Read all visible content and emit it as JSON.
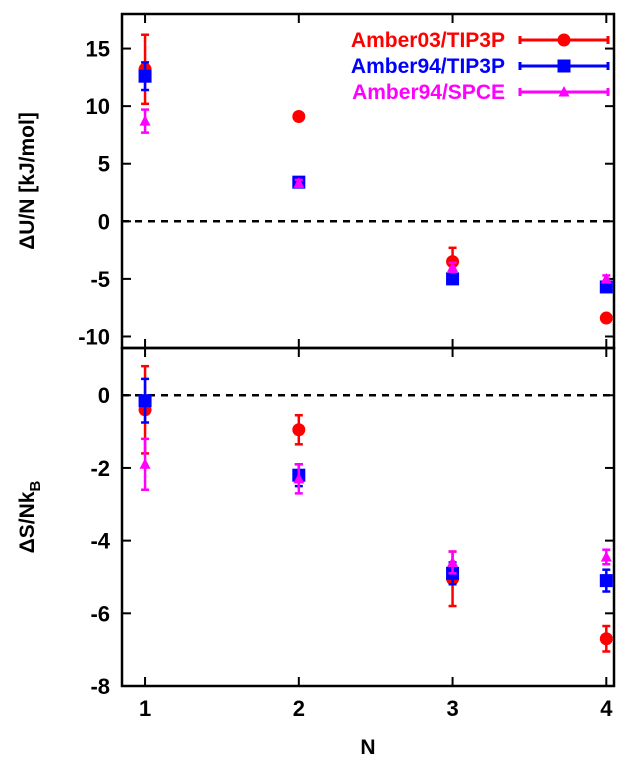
{
  "colors": {
    "amber03_tip3p": "#ff0000",
    "amber94_tip3p": "#0000ff",
    "amber94_spce": "#ff00ff",
    "axis": "#000000"
  },
  "chart_data": [
    {
      "type": "scatter",
      "panel": "top",
      "xlabel": "",
      "ylabel": "ΔU/N [kJ/mol]",
      "xlim": [
        0.85,
        4.05
      ],
      "ylim": [
        -11,
        18
      ],
      "xticks": [
        1,
        2,
        3,
        4
      ],
      "yticks": [
        -10,
        -5,
        0,
        5,
        10,
        15
      ],
      "ytick_labels": [
        "-10",
        "-5",
        "0",
        "5",
        "10",
        "15"
      ],
      "reference_line": {
        "y": 0,
        "style": "dashed"
      },
      "legend": {
        "position": "top-right"
      },
      "series": [
        {
          "name": "Amber03/TIP3P",
          "marker": "circle",
          "color": "#ff0000",
          "x": [
            1,
            2,
            3,
            4
          ],
          "y": [
            13.2,
            9.1,
            -3.5,
            -8.4
          ],
          "err": [
            3.0,
            0.3,
            1.2,
            0.3
          ]
        },
        {
          "name": "Amber94/TIP3P",
          "marker": "square",
          "color": "#0000ff",
          "x": [
            1,
            2,
            3,
            4
          ],
          "y": [
            12.6,
            3.4,
            -5.0,
            -5.7
          ],
          "err": [
            1.2,
            0.3,
            0.3,
            0.3
          ]
        },
        {
          "name": "Amber94/SPCE",
          "marker": "triangle",
          "color": "#ff00ff",
          "x": [
            1,
            2,
            3,
            4
          ],
          "y": [
            8.7,
            3.3,
            -4.0,
            -5.0
          ],
          "err": [
            1.0,
            0.3,
            0.4,
            0.3
          ]
        }
      ]
    },
    {
      "type": "scatter",
      "panel": "bottom",
      "xlabel": "N",
      "ylabel": "ΔS/Nk",
      "ylabel_subscript": "B",
      "xlim": [
        0.85,
        4.05
      ],
      "ylim": [
        -8,
        1.3
      ],
      "xticks": [
        1,
        2,
        3,
        4
      ],
      "xtick_labels": [
        "1",
        "2",
        "3",
        "4"
      ],
      "yticks": [
        -8,
        -6,
        -4,
        -2,
        0
      ],
      "ytick_labels": [
        "-8",
        "-6",
        "-4",
        "-2",
        "0"
      ],
      "reference_line": {
        "y": 0,
        "style": "dashed"
      },
      "series": [
        {
          "name": "Amber03/TIP3P",
          "marker": "circle",
          "color": "#ff0000",
          "x": [
            1,
            2,
            3,
            4
          ],
          "y": [
            -0.4,
            -0.95,
            -5.05,
            -6.7
          ],
          "err": [
            1.2,
            0.4,
            0.75,
            0.35
          ]
        },
        {
          "name": "Amber94/TIP3P",
          "marker": "square",
          "color": "#0000ff",
          "x": [
            1,
            2,
            3,
            4
          ],
          "y": [
            -0.15,
            -2.2,
            -4.9,
            -5.1
          ],
          "err": [
            0.6,
            0.3,
            0.3,
            0.3
          ]
        },
        {
          "name": "Amber94/SPCE",
          "marker": "triangle",
          "color": "#ff00ff",
          "x": [
            1,
            2,
            3,
            4
          ],
          "y": [
            -1.9,
            -2.3,
            -4.6,
            -4.45
          ],
          "err": [
            0.7,
            0.4,
            0.3,
            0.2
          ]
        }
      ]
    }
  ]
}
